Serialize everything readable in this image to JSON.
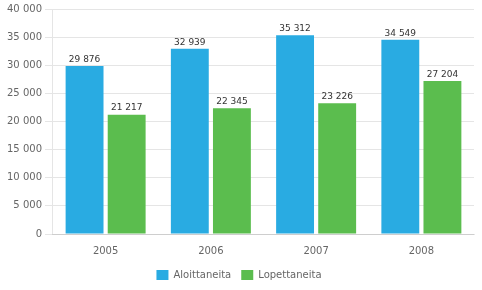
{
  "chart_data": {
    "type": "bar",
    "categories": [
      "2005",
      "2006",
      "2007",
      "2008"
    ],
    "series": [
      {
        "name": "Aloittaneita",
        "color": "#29ABE2",
        "values": [
          29876,
          32939,
          35312,
          34549
        ],
        "value_labels": [
          "29 876",
          "32 939",
          "35 312",
          "34 549"
        ]
      },
      {
        "name": "Lopettaneita",
        "color": "#5BBD4E",
        "values": [
          21217,
          22345,
          23226,
          27204
        ],
        "value_labels": [
          "21 217",
          "22 345",
          "23 226",
          "27 204"
        ]
      }
    ],
    "ylim": [
      0,
      40000
    ],
    "yticks": [
      0,
      {
        "value": 5000,
        "label": "5 000"
      },
      {
        "value": 10000,
        "label": "10 000"
      },
      {
        "value": 15000,
        "label": "15 000"
      },
      {
        "value": 20000,
        "label": "20 000"
      },
      {
        "value": 25000,
        "label": "25 000"
      },
      {
        "value": 30000,
        "label": "30 000"
      },
      {
        "value": 35000,
        "label": "35 000"
      },
      {
        "value": 40000,
        "label": "40 000"
      }
    ],
    "grid": true,
    "legend": "bottom",
    "data_labels": true
  }
}
